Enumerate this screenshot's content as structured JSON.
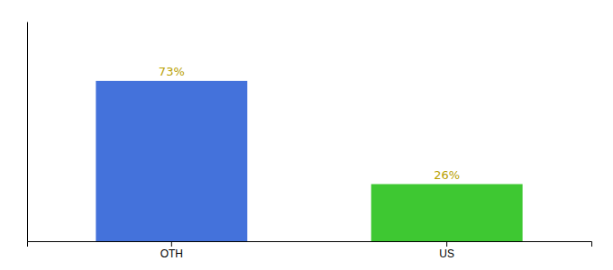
{
  "chart_data": {
    "type": "bar",
    "categories": [
      "OTH",
      "US"
    ],
    "values": [
      73,
      26
    ],
    "colors": [
      "#4472db",
      "#3ec832"
    ],
    "ylim": [
      0,
      100
    ],
    "data_labels": true,
    "value_labels": [
      "73%",
      "26%"
    ],
    "tick_labels": "x"
  }
}
